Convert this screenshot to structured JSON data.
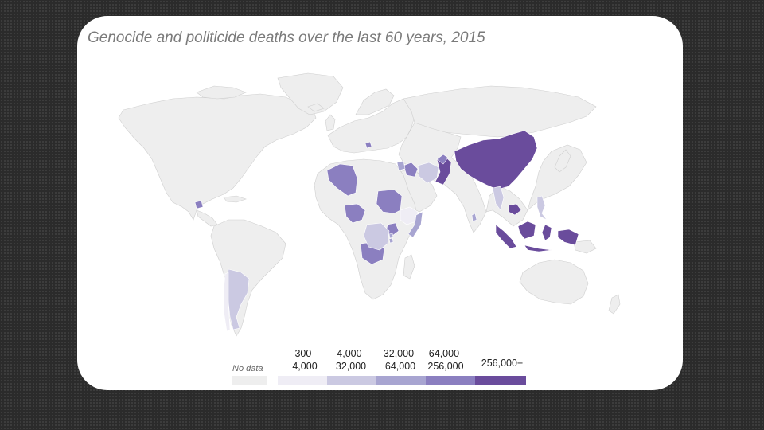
{
  "title": "Genocide and politicide deaths over the last 60 years, 2015",
  "legend": {
    "no_data_label": "No data",
    "bins": [
      {
        "line1": "300-",
        "line2": "4,000",
        "color": "#efedf5"
      },
      {
        "line1": "4,000-",
        "line2": "32,000",
        "color": "#cbc9e2"
      },
      {
        "line1": "32,000-",
        "line2": "64,000",
        "color": "#a8a5d1"
      },
      {
        "line1": "64,000-",
        "line2": "256,000",
        "color": "#8b7fc0"
      },
      {
        "line1": "256,000+",
        "line2": "",
        "color": "#6a4c9c"
      }
    ],
    "no_data_color": "#eeeeee"
  },
  "colors": {
    "no_data": "#eeeeee",
    "border": "#cfcfcf",
    "background": "#ffffff"
  },
  "regions": [
    {
      "name": "China",
      "bin": 4
    },
    {
      "name": "Pakistan",
      "bin": 4
    },
    {
      "name": "Indonesia",
      "bin": 4
    },
    {
      "name": "Cambodia",
      "bin": 4
    },
    {
      "name": "Angola",
      "bin": 3
    },
    {
      "name": "Sudan",
      "bin": 3
    },
    {
      "name": "Nigeria",
      "bin": 3
    },
    {
      "name": "Algeria",
      "bin": 3
    },
    {
      "name": "Iraq",
      "bin": 3
    },
    {
      "name": "Afghanistan",
      "bin": 3
    },
    {
      "name": "Uganda",
      "bin": 3
    },
    {
      "name": "Iran",
      "bin": 1
    },
    {
      "name": "DR Congo",
      "bin": 1
    },
    {
      "name": "Myanmar",
      "bin": 1
    },
    {
      "name": "Argentina",
      "bin": 1
    },
    {
      "name": "Ethiopia",
      "bin": 0
    },
    {
      "name": "Somalia",
      "bin": 2
    },
    {
      "name": "Burundi",
      "bin": 2
    },
    {
      "name": "Rwanda",
      "bin": 2
    },
    {
      "name": "Guatemala",
      "bin": 3
    },
    {
      "name": "Bosnia",
      "bin": 3
    },
    {
      "name": "Sri Lanka",
      "bin": 2
    },
    {
      "name": "Philippines",
      "bin": 1
    },
    {
      "name": "Syria",
      "bin": 2
    },
    {
      "name": "Chile",
      "bin": 0
    }
  ]
}
